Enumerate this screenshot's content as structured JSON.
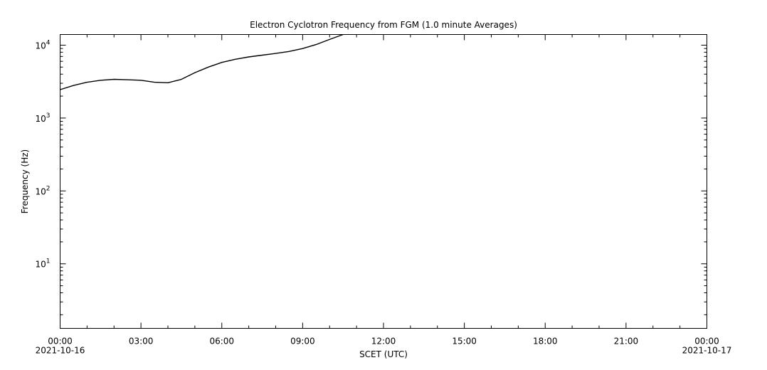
{
  "chart_data": {
    "type": "line",
    "title": "Electron Cyclotron Frequency from FGM (1.0 minute Averages)",
    "xlabel": "SCET (UTC)",
    "ylabel": "Frequency (Hz)",
    "yscale": "log",
    "ylim": [
      1.3,
      14000
    ],
    "xlim": [
      "2021-10-16 00:00",
      "2021-10-17 00:00"
    ],
    "x_ticks": [
      {
        "label": "00:00",
        "sublabel": "2021-10-16"
      },
      {
        "label": "03:00",
        "sublabel": ""
      },
      {
        "label": "06:00",
        "sublabel": ""
      },
      {
        "label": "09:00",
        "sublabel": ""
      },
      {
        "label": "12:00",
        "sublabel": ""
      },
      {
        "label": "15:00",
        "sublabel": ""
      },
      {
        "label": "18:00",
        "sublabel": ""
      },
      {
        "label": "21:00",
        "sublabel": ""
      },
      {
        "label": "00:00",
        "sublabel": "2021-10-17"
      }
    ],
    "y_ticks": [
      {
        "base": "10",
        "exp": "1",
        "value": 10
      },
      {
        "base": "10",
        "exp": "2",
        "value": 100
      },
      {
        "base": "10",
        "exp": "3",
        "value": 1000
      },
      {
        "base": "10",
        "exp": "4",
        "value": 10000
      }
    ],
    "grid": false,
    "series": [
      {
        "color": "#000000",
        "x": [
          "2021-10-16 00:00",
          "2021-10-16 00:30",
          "2021-10-16 01:00",
          "2021-10-16 01:30",
          "2021-10-16 02:00",
          "2021-10-16 02:30",
          "2021-10-16 03:00",
          "2021-10-16 03:30",
          "2021-10-16 04:00",
          "2021-10-16 04:30",
          "2021-10-16 05:00",
          "2021-10-16 05:30",
          "2021-10-16 06:00",
          "2021-10-16 06:30",
          "2021-10-16 07:00",
          "2021-10-16 07:30",
          "2021-10-16 08:00",
          "2021-10-16 08:30",
          "2021-10-16 09:00",
          "2021-10-16 09:30",
          "2021-10-16 10:00",
          "2021-10-16 10:30"
        ],
        "y": [
          2450,
          2800,
          3100,
          3300,
          3400,
          3350,
          3300,
          3100,
          3050,
          3400,
          4200,
          5000,
          5800,
          6400,
          6900,
          7300,
          7700,
          8200,
          9000,
          10200,
          12000,
          14000
        ]
      }
    ]
  }
}
